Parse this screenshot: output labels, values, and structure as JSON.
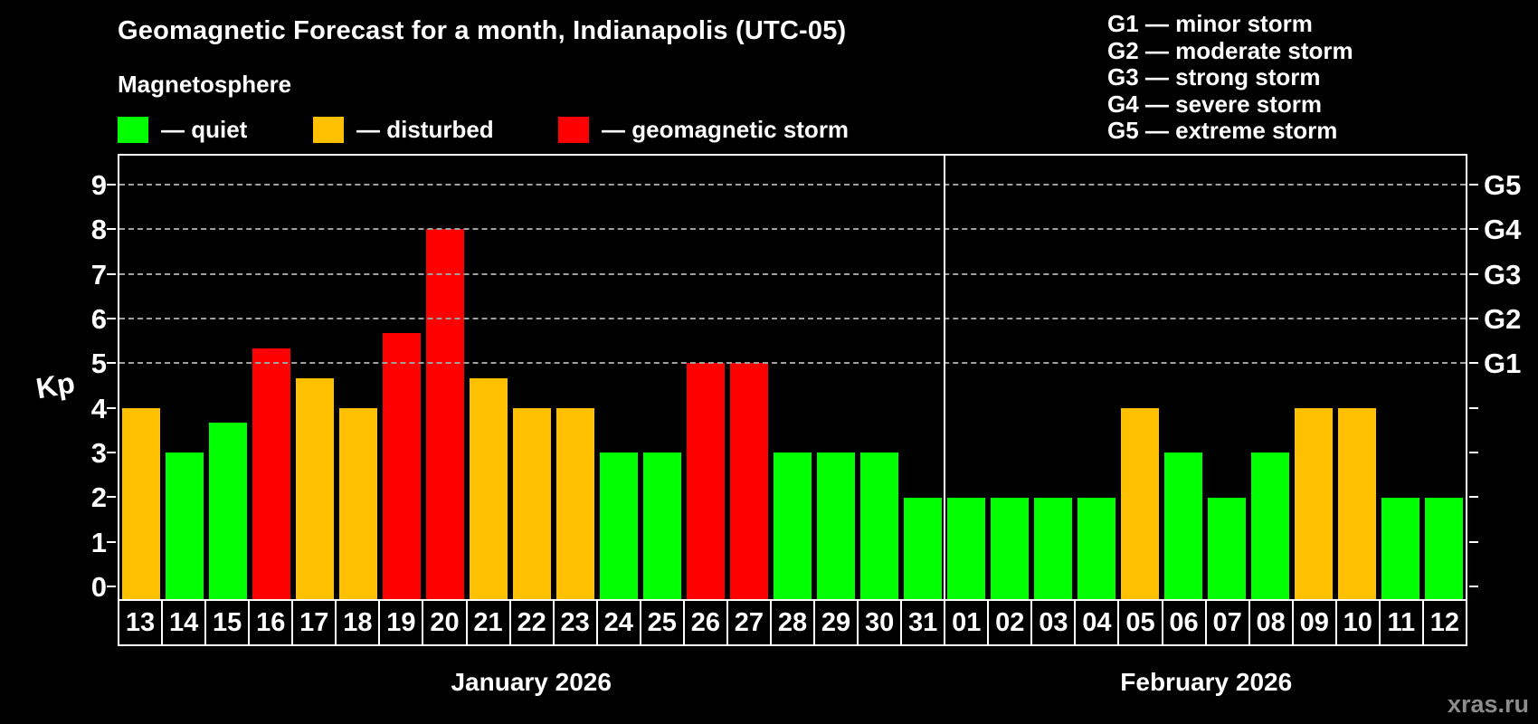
{
  "title": "Geomagnetic Forecast for a month, Indianapolis (UTC-05)",
  "legend": {
    "heading": "Magnetosphere",
    "items": [
      {
        "key": "quiet",
        "label": "— quiet",
        "color": "#00ff00",
        "x": 130
      },
      {
        "key": "disturbed",
        "label": "— disturbed",
        "color": "#ffc000",
        "x": 346
      },
      {
        "key": "storm",
        "label": "— geomagnetic storm",
        "color": "#ff0000",
        "x": 617
      }
    ]
  },
  "g_legend": [
    "G1 — minor storm",
    "G2 — moderate storm",
    "G3 — strong storm",
    "G4 — severe storm",
    "G5 — extreme storm"
  ],
  "watermark": "xras.ru",
  "colors": {
    "quiet": "#00ff00",
    "disturbed": "#ffc000",
    "storm": "#ff0000",
    "gridline": "#a0a0a0",
    "axis": "#ffffff",
    "background": "#000000",
    "watermark_text": "#8c8c8c"
  },
  "chart_data": {
    "type": "bar",
    "title": "Geomagnetic Forecast for a month, Indianapolis (UTC-05)",
    "ylabel": "Kp",
    "y_ticks": [
      0,
      1,
      2,
      3,
      4,
      5,
      6,
      7,
      8,
      9
    ],
    "y_range_rendered": [
      -0.28,
      9.65
    ],
    "gridlines_at_kp": [
      5,
      6,
      7,
      8,
      9
    ],
    "grid": "dashed horizontal at G-storm levels only",
    "legend_position": "top",
    "right_axis_labels": [
      {
        "label": "G1",
        "kp": 5
      },
      {
        "label": "G2",
        "kp": 6
      },
      {
        "label": "G3",
        "kp": 7
      },
      {
        "label": "G4",
        "kp": 8
      },
      {
        "label": "G5",
        "kp": 9
      }
    ],
    "months": [
      {
        "label": "January 2026",
        "days_count": 19
      },
      {
        "label": "February 2026",
        "days_count": 12
      }
    ],
    "bars": [
      {
        "day": "13",
        "month": "January 2026",
        "kp": 4,
        "status": "disturbed"
      },
      {
        "day": "14",
        "month": "January 2026",
        "kp": 3,
        "status": "quiet"
      },
      {
        "day": "15",
        "month": "January 2026",
        "kp": 3.67,
        "status": "quiet"
      },
      {
        "day": "16",
        "month": "January 2026",
        "kp": 5.33,
        "status": "storm"
      },
      {
        "day": "17",
        "month": "January 2026",
        "kp": 4.67,
        "status": "disturbed"
      },
      {
        "day": "18",
        "month": "January 2026",
        "kp": 4,
        "status": "disturbed"
      },
      {
        "day": "19",
        "month": "January 2026",
        "kp": 5.67,
        "status": "storm"
      },
      {
        "day": "20",
        "month": "January 2026",
        "kp": 8,
        "status": "storm"
      },
      {
        "day": "21",
        "month": "January 2026",
        "kp": 4.67,
        "status": "disturbed"
      },
      {
        "day": "22",
        "month": "January 2026",
        "kp": 4,
        "status": "disturbed"
      },
      {
        "day": "23",
        "month": "January 2026",
        "kp": 4,
        "status": "disturbed"
      },
      {
        "day": "24",
        "month": "January 2026",
        "kp": 3,
        "status": "quiet"
      },
      {
        "day": "25",
        "month": "January 2026",
        "kp": 3,
        "status": "quiet"
      },
      {
        "day": "26",
        "month": "January 2026",
        "kp": 5,
        "status": "storm"
      },
      {
        "day": "27",
        "month": "January 2026",
        "kp": 5,
        "status": "storm"
      },
      {
        "day": "28",
        "month": "January 2026",
        "kp": 3,
        "status": "quiet"
      },
      {
        "day": "29",
        "month": "January 2026",
        "kp": 3,
        "status": "quiet"
      },
      {
        "day": "30",
        "month": "January 2026",
        "kp": 3,
        "status": "quiet"
      },
      {
        "day": "31",
        "month": "January 2026",
        "kp": 2,
        "status": "quiet"
      },
      {
        "day": "01",
        "month": "February 2026",
        "kp": 2,
        "status": "quiet"
      },
      {
        "day": "02",
        "month": "February 2026",
        "kp": 2,
        "status": "quiet"
      },
      {
        "day": "03",
        "month": "February 2026",
        "kp": 2,
        "status": "quiet"
      },
      {
        "day": "04",
        "month": "February 2026",
        "kp": 2,
        "status": "quiet"
      },
      {
        "day": "05",
        "month": "February 2026",
        "kp": 4,
        "status": "disturbed"
      },
      {
        "day": "06",
        "month": "February 2026",
        "kp": 3,
        "status": "quiet"
      },
      {
        "day": "07",
        "month": "February 2026",
        "kp": 2,
        "status": "quiet"
      },
      {
        "day": "08",
        "month": "February 2026",
        "kp": 3,
        "status": "quiet"
      },
      {
        "day": "09",
        "month": "February 2026",
        "kp": 4,
        "status": "disturbed"
      },
      {
        "day": "10",
        "month": "February 2026",
        "kp": 4,
        "status": "disturbed"
      },
      {
        "day": "11",
        "month": "February 2026",
        "kp": 2,
        "status": "quiet"
      },
      {
        "day": "12",
        "month": "February 2026",
        "kp": 2,
        "status": "quiet"
      }
    ]
  }
}
